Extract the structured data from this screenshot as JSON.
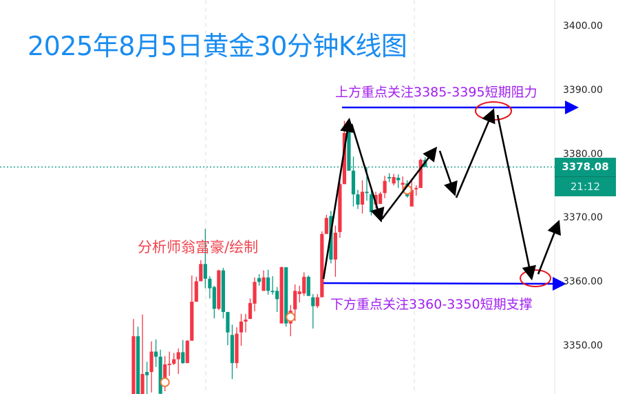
{
  "title": "2025年8月5日黄金30分钟K线图",
  "annotations": {
    "resistance": "上方重点关注3385-3395短期阻力",
    "support": "下方重点关注3360-3350短期支撑",
    "author": "分析师翁富豪/绘制"
  },
  "price_badge": {
    "price": "3378.08",
    "countdown": "21:12"
  },
  "colors": {
    "up": "#f23645",
    "down": "#089981",
    "title": "#1a8cf0",
    "annotation": "#a020f0",
    "level_line": "#0000ff",
    "circle": "#e8141c",
    "arrow": "#000000"
  },
  "chart_data": {
    "type": "candlestick",
    "title": "2025年8月5日黄金30分钟K线图",
    "ylim": [
      3345,
      3403
    ],
    "yticks": [
      "3400.00",
      "3390.00",
      "3380.00",
      "3370.00",
      "3360.00",
      "3350.00"
    ],
    "ytick_values": [
      3400,
      3390,
      3380,
      3370,
      3360,
      3350
    ],
    "current_price": 3378.08,
    "grid": "vertical dashed only",
    "levels": {
      "resistance": 3387.5,
      "support": 3360
    },
    "ohlc": [
      [
        3342,
        3354.3,
        3340,
        3351.6
      ],
      [
        3351.6,
        3353.1,
        3340,
        3342
      ],
      [
        3341,
        3355,
        3340,
        3345.7
      ],
      [
        3346,
        3347.6,
        3341,
        3345.5
      ],
      [
        3346,
        3350.8,
        3342.8,
        3349.2
      ],
      [
        3349.2,
        3351.1,
        3346.8,
        3348.4
      ],
      [
        3348.4,
        3349.5,
        3340,
        3342.6
      ],
      [
        3344.2,
        3348.5,
        3343,
        3347.2
      ],
      [
        3347.1,
        3349.2,
        3345.4,
        3347.3
      ],
      [
        3347.3,
        3349,
        3347.1,
        3348
      ],
      [
        3348,
        3349.7,
        3345.7,
        3349.1
      ],
      [
        3349.1,
        3351,
        3347.3,
        3347.4
      ],
      [
        3347.4,
        3351,
        3347.4,
        3350.9
      ],
      [
        3350.9,
        3361.1,
        3350.9,
        3357
      ],
      [
        3357,
        3360.9,
        3357,
        3360.2
      ],
      [
        3360.2,
        3363.5,
        3360.2,
        3362.9
      ],
      [
        3362.9,
        3368.4,
        3359.1,
        3360.6
      ],
      [
        3360.6,
        3361,
        3357.5,
        3359.1
      ],
      [
        3359.3,
        3359.5,
        3354.4,
        3355.9
      ],
      [
        3355.9,
        3362,
        3355.7,
        3361.9
      ],
      [
        3361.9,
        3362.3,
        3354.4,
        3355.4
      ],
      [
        3355.4,
        3355.4,
        3350.2,
        3352.2
      ],
      [
        3351.8,
        3353.4,
        3344.9,
        3347.4
      ],
      [
        3347.4,
        3353,
        3346.6,
        3352
      ],
      [
        3352.2,
        3355.1,
        3350.1,
        3353.9
      ],
      [
        3353.9,
        3355.1,
        3352.2,
        3354.2
      ],
      [
        3354.3,
        3357.5,
        3354.3,
        3356.8
      ],
      [
        3356.7,
        3360.8,
        3355.5,
        3360.1
      ],
      [
        3360.7,
        3361.3,
        3359.5,
        3360.1
      ],
      [
        3358.7,
        3361.9,
        3358.7,
        3360.8
      ],
      [
        3360.8,
        3362,
        3358.1,
        3358.7
      ],
      [
        3358.7,
        3361,
        3358.1,
        3358.5
      ],
      [
        3358.7,
        3359.3,
        3355.4,
        3357.4
      ],
      [
        3353.6,
        3362.5,
        3353.6,
        3362.4
      ],
      [
        3362.4,
        3362.4,
        3353.1,
        3353.6
      ],
      [
        3353.6,
        3356.5,
        3351.6,
        3355.6
      ],
      [
        3355.8,
        3359.7,
        3354,
        3358.7
      ],
      [
        3358.2,
        3359.5,
        3356.9,
        3358.6
      ],
      [
        3358.3,
        3361.6,
        3357.9,
        3360.9
      ],
      [
        3360.9,
        3361.1,
        3357.9,
        3357.9
      ],
      [
        3357.7,
        3358.2,
        3352.8,
        3356.3
      ],
      [
        3356.3,
        3358.2,
        3356,
        3357.7
      ],
      [
        3357.7,
        3368,
        3357.7,
        3367.6
      ],
      [
        3367.6,
        3370.6,
        3367.6,
        3370.1
      ],
      [
        3370.4,
        3371.2,
        3363,
        3363.6
      ],
      [
        3363.6,
        3368.9,
        3360.9,
        3367.8
      ],
      [
        3367.9,
        3376.2,
        3367,
        3375.4
      ],
      [
        3375.4,
        3385.3,
        3375.4,
        3383.4
      ],
      [
        3384.5,
        3385.1,
        3377.5,
        3377.5
      ],
      [
        3377.5,
        3379.7,
        3371.9,
        3373.8
      ],
      [
        3373.8,
        3374.5,
        3371.5,
        3372.2
      ],
      [
        3372.2,
        3376,
        3370.8,
        3374.2
      ],
      [
        3374.2,
        3378.1,
        3372.8,
        3374
      ],
      [
        3373.8,
        3374.5,
        3370.5,
        3371
      ],
      [
        3372.2,
        3374.2,
        3371.6,
        3373.7
      ],
      [
        3372.3,
        3374.2,
        3372.3,
        3373.9
      ],
      [
        3374,
        3376.7,
        3373.2,
        3375.9
      ],
      [
        3376.5,
        3377.1,
        3375.7,
        3376.3
      ],
      [
        3375.5,
        3377,
        3375.2,
        3376.5
      ],
      [
        3376.4,
        3376.9,
        3374.8,
        3376
      ],
      [
        3375.3,
        3376.6,
        3374.6,
        3375.6
      ],
      [
        3375.5,
        3376,
        3373.3,
        3373.5
      ],
      [
        3371.9,
        3376.2,
        3371.9,
        3374.5
      ],
      [
        3374.6,
        3375.2,
        3373.6,
        3374.8
      ],
      [
        3374.8,
        3379.4,
        3374.8,
        3379.2
      ],
      [
        3379.2,
        3379.6,
        3378.08,
        3378.08
      ]
    ],
    "markers_at_candle": [
      7,
      35,
      61
    ]
  }
}
